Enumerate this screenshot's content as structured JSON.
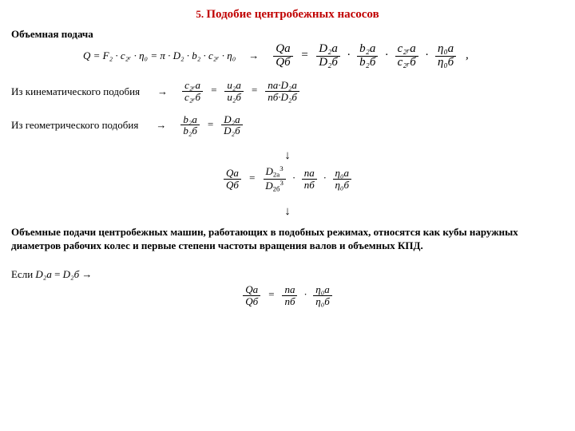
{
  "title": {
    "num": "5.",
    "txt": "Подобие центробежных насосов"
  },
  "subhead": "Объемная подача",
  "eq1": {
    "lhs": "Q = F₂ · c₂ᵣ · η₀ = π · D₂ · b₂ · c₂ᵣ · η₀",
    "arrow": "→",
    "frQ_n": "Qа",
    "frQ_d": "Qб",
    "eq": "=",
    "frD_n": "D₂а",
    "frD_d": "D₂б",
    "frb_n": "b₂а",
    "frb_d": "b₂б",
    "frc_n": "c₂ᵣа",
    "frc_d": "c₂ᵣб",
    "fre_n": "η₀а",
    "fre_d": "η₀б",
    "comma": ","
  },
  "line2": {
    "lead": "Из кинематического подобия",
    "arrow": "→",
    "f1n": "c₂ᵣа",
    "f1d": "c₂ᵣб",
    "f2n": "u₂а",
    "f2d": "u₂б",
    "f3n": "nа·D₂а",
    "f3d": "nб·D₂б"
  },
  "line3": {
    "lead": "Из геометрического подобия",
    "arrow": "→",
    "f1n": "b₂а",
    "f1d": "b₂б",
    "f2n": "D₂а",
    "f2d": "D₂б"
  },
  "downarrow": "↓",
  "eq2": {
    "frQ_n": "Qа",
    "frQ_d": "Qб",
    "frD_n_base": "D",
    "frD_n_sub": "2а",
    "frD_n_sup": "3",
    "frD_d_base": "D",
    "frD_d_sub": "2б",
    "frD_d_sup": "3",
    "frn_n": "nа",
    "frn_d": "nб",
    "fre_n": "η₀а",
    "fre_d": "η₀б"
  },
  "para": "Объемные подачи центробежных машин, работающих в подобных режимах, относятся как кубы наружных диаметров рабочих колес и первые степени частоты вращения валов и объемных КПД.",
  "cond": {
    "pre": "Если ",
    "a": "D₂а",
    "mid": " = ",
    "b": "D₂б",
    "arr": " →"
  },
  "eq3": {
    "frQ_n": "Qа",
    "frQ_d": "Qб",
    "frn_n": "nа",
    "frn_d": "nб",
    "fre_n": "η₀а",
    "fre_d": "η₀б"
  }
}
